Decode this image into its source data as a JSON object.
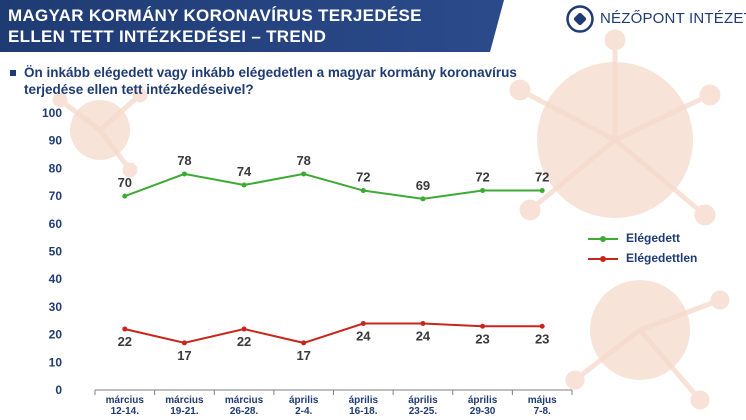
{
  "header": {
    "title_line1": "MAGYAR KORMÁNY KORONAVÍRUS TERJEDÉSE",
    "title_line2": "ELLEN TETT INTÉZKEDÉSEI – TREND",
    "logo_text": "NÉZŐPONT INTÉZET"
  },
  "question": "Ön inkább elégedett vagy inkább elégedetlen a magyar kormány koronavírus terjedése ellen tett intézkedéseivel?",
  "colors": {
    "banner": "#1f3b73",
    "text": "#1f3b73",
    "satisfied": "#3daa35",
    "dissatisfied": "#c8261d",
    "virus_bg": "#f6d9cc"
  },
  "chart_data": {
    "type": "line",
    "categories": [
      [
        "március",
        "12-14."
      ],
      [
        "március",
        "19-21."
      ],
      [
        "március",
        "26-28."
      ],
      [
        "április",
        "2-4."
      ],
      [
        "április",
        "16-18."
      ],
      [
        "április",
        "23-25."
      ],
      [
        "április",
        "29-30"
      ],
      [
        "május",
        "7-8."
      ]
    ],
    "series": [
      {
        "name": "Elégedett",
        "values": [
          70,
          78,
          74,
          78,
          72,
          69,
          72,
          72
        ],
        "color": "#3daa35"
      },
      {
        "name": "Elégedettlen",
        "values": [
          22,
          17,
          22,
          17,
          24,
          24,
          23,
          23
        ],
        "color": "#c8261d"
      }
    ],
    "ylim": [
      0,
      100
    ],
    "yticks": [
      0,
      10,
      20,
      30,
      40,
      50,
      60,
      70,
      80,
      90,
      100
    ],
    "grid": false,
    "legend": "right"
  }
}
